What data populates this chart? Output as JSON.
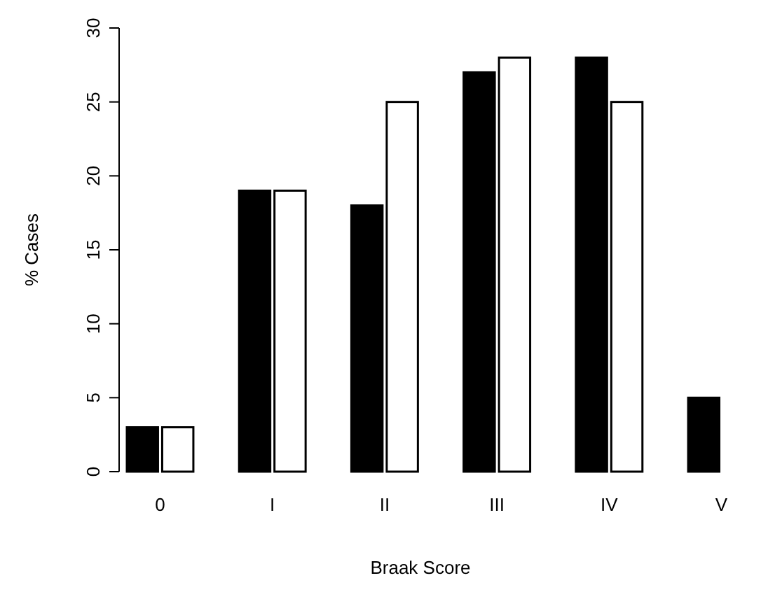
{
  "chart_data": {
    "type": "bar",
    "xlabel": "Braak Score",
    "ylabel": "% Cases",
    "categories": [
      "0",
      "I",
      "II",
      "III",
      "IV",
      "V"
    ],
    "series": [
      {
        "color": "#000000",
        "values": [
          3,
          19,
          18,
          27,
          28,
          5
        ]
      },
      {
        "color": "#ffffff",
        "values": [
          3,
          19,
          25,
          28,
          25,
          null
        ]
      }
    ],
    "ylim": [
      0,
      30
    ],
    "yticks": [
      0,
      5,
      10,
      15,
      20,
      25,
      30
    ]
  }
}
